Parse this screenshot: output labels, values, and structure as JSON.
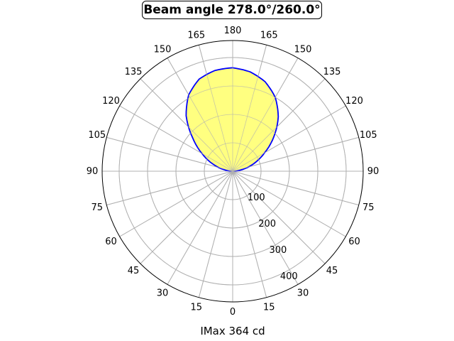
{
  "chart_data": {
    "type": "polar",
    "title": "Beam angle 278.0°/260.0°",
    "xlabel": "IMax 364 cd",
    "radial_ticks": [
      100,
      200,
      300,
      400
    ],
    "radial_max": 460,
    "angle_ticks_right": [
      "0",
      "15",
      "30",
      "45",
      "60",
      "75",
      "90",
      "105",
      "120",
      "135",
      "150",
      "165",
      "180"
    ],
    "angle_ticks_left": [
      "15",
      "30",
      "45",
      "60",
      "75",
      "90",
      "105",
      "120",
      "135",
      "150",
      "165"
    ],
    "grid": true,
    "colors": {
      "curve": "#0000ff",
      "fill": "#ffff80",
      "grid": "#b0b0b0"
    },
    "series": [
      {
        "angles_deg": [
          90,
          100,
          110,
          120,
          130,
          140,
          150,
          160,
          170,
          180
        ],
        "values_right": [
          0,
          35,
          80,
          130,
          190,
          250,
          300,
          335,
          355,
          364
        ],
        "values_left": [
          0,
          30,
          75,
          125,
          185,
          255,
          310,
          345,
          360,
          364
        ]
      }
    ]
  }
}
